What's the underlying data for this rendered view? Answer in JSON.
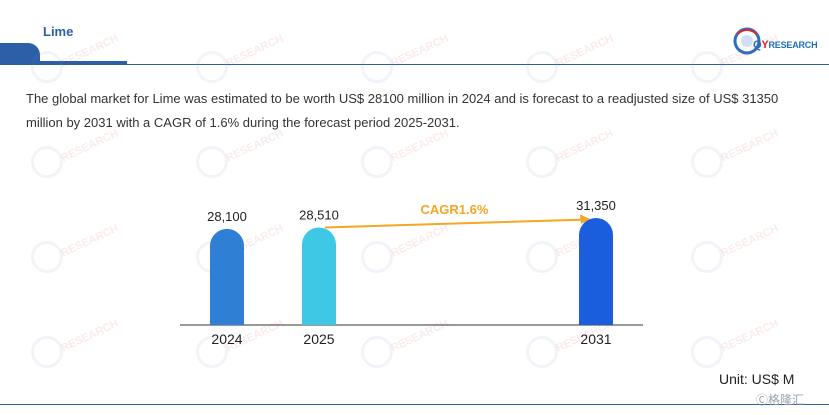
{
  "header": {
    "title": "Lime",
    "logo": {
      "q": "Q",
      "y": "Y",
      "rest": "RESEARCH"
    }
  },
  "description": "The global market for Lime was estimated to be worth US$ 28100 million in 2024 and is forecast to a readjusted size of US$ 31350 million by 2031 with a CAGR of 1.6% during the forecast period 2025-2031.",
  "unit": "Unit: US$ M",
  "footer_mark": "Ⓒ格隆汇",
  "watermark_text": "RESEARCH",
  "colors": {
    "brand": "#2b5fa8",
    "bar_2024": "#2f7fd4",
    "bar_2025": "#3ec8e6",
    "bar_2031": "#1a5ede",
    "cagr": "#f5a623"
  },
  "chart_data": {
    "type": "bar",
    "categories": [
      "2024",
      "2025",
      "2031"
    ],
    "values": [
      28100,
      28510,
      31350
    ],
    "value_labels": [
      "28,100",
      "28,510",
      "31,350"
    ],
    "annotation": {
      "text": "CAGR1.6%",
      "from": "2025",
      "to": "2031"
    },
    "xlabel": "",
    "ylabel": ""
  }
}
